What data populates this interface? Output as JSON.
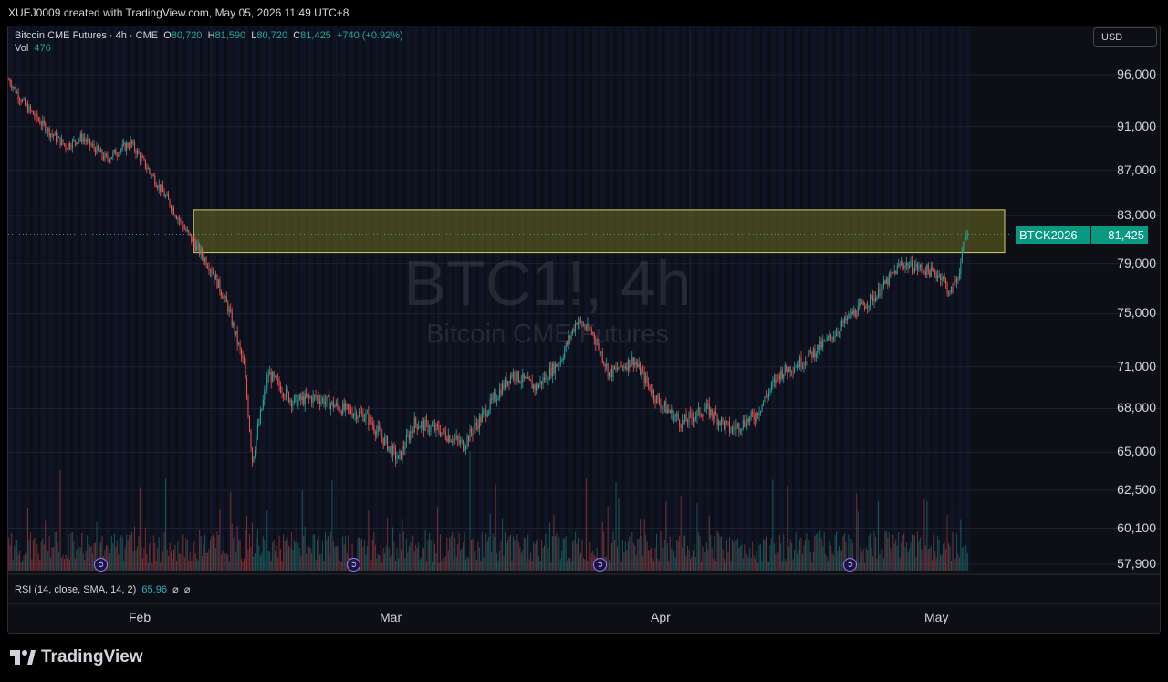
{
  "header": {
    "text": "XUEJ0009 created with TradingView.com, May 05, 2026 11:49 UTC+8"
  },
  "legend": {
    "title": "Bitcoin CME Futures · 4h · CME",
    "o_label": "O",
    "o_value": "80,720",
    "h_label": "H",
    "h_value": "81,590",
    "l_label": "L",
    "l_value": "80,720",
    "c_label": "C",
    "c_value": "81,425",
    "change": "+740 (+0.92%)",
    "vol_label": "Vol",
    "vol_value": "476"
  },
  "currency_button": "USD",
  "watermark": {
    "symbol": "BTC1!, 4h",
    "name": "Bitcoin CME Futures"
  },
  "price_axis": [
    "96,000",
    "91,000",
    "87,000",
    "83,000",
    "79,000",
    "75,000",
    "71,000",
    "68,000",
    "65,000",
    "62,500",
    "60,100",
    "57,900"
  ],
  "last_price": {
    "symbol": "BTCK2026",
    "value": "81,425"
  },
  "rsi": {
    "label": "RSI (14, close, SMA, 14, 2)",
    "value": "65.96",
    "extra1": "⌀",
    "extra2": "⌀"
  },
  "time_axis": [
    "Feb",
    "Mar",
    "Apr",
    "May"
  ],
  "footer": {
    "brand": "TradingView"
  },
  "colors": {
    "up": "#26a69a",
    "down": "#ef5350",
    "zone_fill": "#6b6a1e",
    "zone_border": "#c9d46a",
    "badge": "#089981"
  },
  "chart_data": {
    "type": "candlestick",
    "symbol": "BTC1!",
    "interval": "4h",
    "ylim": [
      57000,
      97500
    ],
    "zone": {
      "low": 79900,
      "high": 83500
    },
    "last_close": 81425,
    "key_closes": [
      {
        "d": "Jan 07",
        "v": 95500
      },
      {
        "d": "Jan 09",
        "v": 93000
      },
      {
        "d": "Jan 12",
        "v": 90500
      },
      {
        "d": "Jan 14",
        "v": 89200
      },
      {
        "d": "Jan 16",
        "v": 90000
      },
      {
        "d": "Jan 19",
        "v": 88000
      },
      {
        "d": "Jan 22",
        "v": 89500
      },
      {
        "d": "Jan 26",
        "v": 85000
      },
      {
        "d": "Jan 29",
        "v": 81500
      },
      {
        "d": "Feb 01",
        "v": 78500
      },
      {
        "d": "Feb 03",
        "v": 75500
      },
      {
        "d": "Feb 05",
        "v": 71000
      },
      {
        "d": "Feb 06",
        "v": 64500
      },
      {
        "d": "Feb 08",
        "v": 70500
      },
      {
        "d": "Feb 11",
        "v": 68500
      },
      {
        "d": "Feb 14",
        "v": 68800
      },
      {
        "d": "Feb 17",
        "v": 68000
      },
      {
        "d": "Feb 20",
        "v": 67500
      },
      {
        "d": "Feb 24",
        "v": 64500
      },
      {
        "d": "Feb 26",
        "v": 67000
      },
      {
        "d": "Mar 01",
        "v": 66500
      },
      {
        "d": "Mar 04",
        "v": 65500
      },
      {
        "d": "Mar 07",
        "v": 68000
      },
      {
        "d": "Mar 10",
        "v": 70500
      },
      {
        "d": "Mar 13",
        "v": 69500
      },
      {
        "d": "Mar 16",
        "v": 71500
      },
      {
        "d": "Mar 18",
        "v": 74500
      },
      {
        "d": "Mar 20",
        "v": 73500
      },
      {
        "d": "Mar 22",
        "v": 70500
      },
      {
        "d": "Mar 25",
        "v": 71500
      },
      {
        "d": "Mar 28",
        "v": 68500
      },
      {
        "d": "Mar 31",
        "v": 67000
      },
      {
        "d": "Apr 03",
        "v": 68000
      },
      {
        "d": "Apr 06",
        "v": 66500
      },
      {
        "d": "Apr 09",
        "v": 67500
      },
      {
        "d": "Apr 12",
        "v": 70500
      },
      {
        "d": "Apr 15",
        "v": 71500
      },
      {
        "d": "Apr 18",
        "v": 73000
      },
      {
        "d": "Apr 21",
        "v": 75000
      },
      {
        "d": "Apr 24",
        "v": 76500
      },
      {
        "d": "Apr 27",
        "v": 79000
      },
      {
        "d": "Apr 30",
        "v": 78500
      },
      {
        "d": "May 02",
        "v": 78000
      },
      {
        "d": "May 03",
        "v": 76500
      },
      {
        "d": "May 04",
        "v": 78000
      },
      {
        "d": "May 05",
        "v": 81425
      }
    ]
  }
}
